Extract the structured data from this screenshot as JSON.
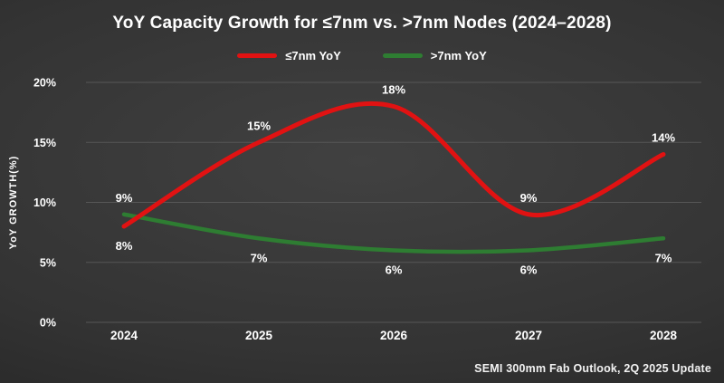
{
  "chart_data": {
    "type": "line",
    "title": "YoY Capacity Growth for ≤7nm vs. >7nm Nodes (2024–2028)",
    "ylabel": "YoY GROWTH(%)",
    "xlabel": "",
    "categories": [
      "2024",
      "2025",
      "2026",
      "2027",
      "2028"
    ],
    "ylim": [
      0,
      20
    ],
    "yticks": [
      0,
      5,
      10,
      15,
      20
    ],
    "ytick_labels": [
      "0%",
      "5%",
      "10%",
      "15%",
      "20%"
    ],
    "grid": "horizontal",
    "legend_position": "top-center",
    "colors": {
      "background_center": "#414141",
      "background_edge": "#212121",
      "gridline": "#575757",
      "text": "#ffffff",
      "red_series": "#e11212",
      "green_series": "#2e7d32"
    },
    "series": [
      {
        "name": "≤7nm YoY",
        "color": "#e11212",
        "line_width": 5,
        "values": [
          8,
          15,
          18,
          9,
          14
        ],
        "data_labels": [
          "8%",
          "15%",
          "18%",
          "9%",
          "14%"
        ],
        "label_side": [
          "below",
          "above",
          "above",
          "above",
          "above"
        ]
      },
      {
        "name": ">7nm YoY",
        "color": "#2e7d32",
        "line_width": 4.5,
        "values": [
          9,
          7,
          6,
          6,
          7
        ],
        "data_labels": [
          "9%",
          "7%",
          "6%",
          "6%",
          "7%"
        ],
        "label_side": [
          "above",
          "below",
          "below",
          "below",
          "below"
        ]
      }
    ],
    "source_note": "SEMI 300mm Fab Outlook,  2Q 2025 Update"
  }
}
